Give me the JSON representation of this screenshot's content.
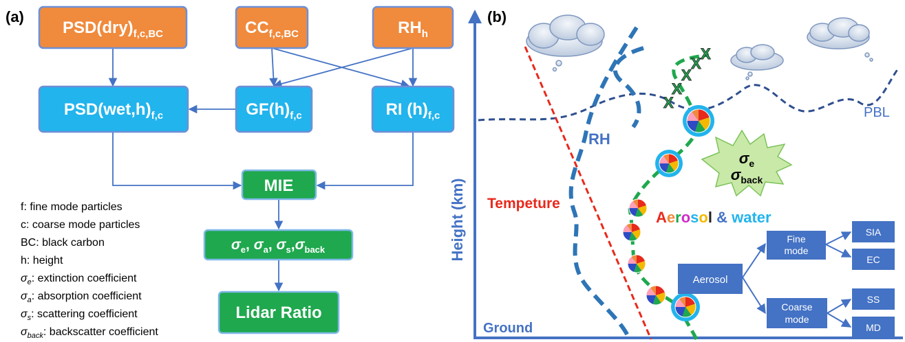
{
  "panel_a": {
    "label": "(a)",
    "top_boxes": [
      {
        "main": "PSD(dry)",
        "sub": "f,c,BC",
        "color": "#F08A3C"
      },
      {
        "main": "CC",
        "sub": "f,c,BC",
        "color": "#F08A3C"
      },
      {
        "main": "RH",
        "sub": "h",
        "color": "#F08A3C"
      }
    ],
    "mid_boxes": [
      {
        "main": "PSD(wet,h)",
        "sub": "f,c",
        "color": "#22B4EC"
      },
      {
        "main": "GF(h)",
        "sub": "f,c",
        "color": "#22B4EC"
      },
      {
        "main": "RI (h)",
        "sub": "f,c",
        "color": "#22B4EC"
      }
    ],
    "mie": "MIE",
    "sigma_box": {
      "s": "σ",
      "e": "e",
      "a": "a",
      "sc": "s",
      "back": "back",
      "sep": ", "
    },
    "lidar": "Lidar Ratio",
    "green_color": "#1FA84E",
    "legend": [
      {
        "sym": "",
        "sub": "",
        "text": "f: fine mode particles"
      },
      {
        "sym": "",
        "sub": "",
        "text": "c: coarse mode particles"
      },
      {
        "sym": "",
        "sub": "",
        "text": "BC: black carbon"
      },
      {
        "sym": "",
        "sub": "",
        "text": "h: height"
      },
      {
        "sym": "σ",
        "sub": "e",
        "text": ": extinction coefficient"
      },
      {
        "sym": "σ",
        "sub": "a",
        "text": ": absorption coefficient"
      },
      {
        "sym": "σ",
        "sub": "s",
        "text": ": scattering coefficient"
      },
      {
        "sym": "σ",
        "sub": "back",
        "text": ": backscatter coefficient"
      }
    ]
  },
  "panel_b": {
    "label": "(b)",
    "y_axis": "Height (km)",
    "ground": "Ground",
    "pbl": "PBL",
    "rh": "RH",
    "temperature": "Tempeture",
    "star_sigma": "σ",
    "star_e": "e",
    "star_back": "back",
    "aerosol_letters": [
      {
        "ch": "A",
        "color": "#E8291C"
      },
      {
        "ch": "e",
        "color": "#F08A3C"
      },
      {
        "ch": "r",
        "color": "#1FA84E"
      },
      {
        "ch": "o",
        "color": "#D22BC9"
      },
      {
        "ch": "s",
        "color": "#22B4EC"
      },
      {
        "ch": "o",
        "color": "#F5B800"
      },
      {
        "ch": "l",
        "color": "#222222"
      }
    ],
    "amp": " & ",
    "water": "water",
    "tree": {
      "root": "Aerosol",
      "fine": [
        "Fine",
        "mode"
      ],
      "coarse": [
        "Coarse",
        "mode"
      ],
      "fine_leaves": [
        "SIA",
        "EC"
      ],
      "coarse_leaves": [
        "SS",
        "MD"
      ]
    },
    "colors": {
      "axis": "#4472C4",
      "rh_line": "#2E75B6",
      "pbl_line": "#2F4F8F",
      "temp_line": "#E8291C",
      "particle_path": "#1FA84E",
      "tree_box": "#4472C4",
      "water": "#22B4EC"
    }
  }
}
